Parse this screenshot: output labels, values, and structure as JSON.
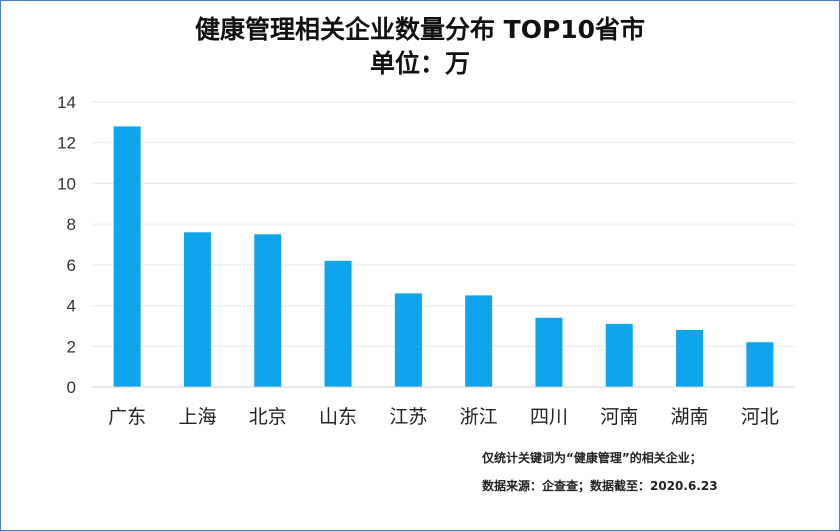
{
  "chart_data": {
    "type": "bar",
    "title": "健康管理相关企业数量分布 TOP10省市",
    "subtitle": "单位：万",
    "categories": [
      "广东",
      "上海",
      "北京",
      "山东",
      "江苏",
      "浙江",
      "四川",
      "河南",
      "湖南",
      "河北"
    ],
    "values": [
      12.8,
      7.6,
      7.5,
      6.2,
      4.6,
      4.5,
      3.4,
      3.1,
      2.8,
      2.2
    ],
    "ylim": [
      0,
      14
    ],
    "yticks": [
      0,
      2,
      4,
      6,
      8,
      10,
      12,
      14
    ],
    "grid": true,
    "legend": "none",
    "bar_color": "#0ea5ec"
  },
  "notes": {
    "line1": "仅统计关键词为“健康管理”的相关企业；",
    "line2": "数据来源：企查查；数据截至：2020.6.23"
  }
}
